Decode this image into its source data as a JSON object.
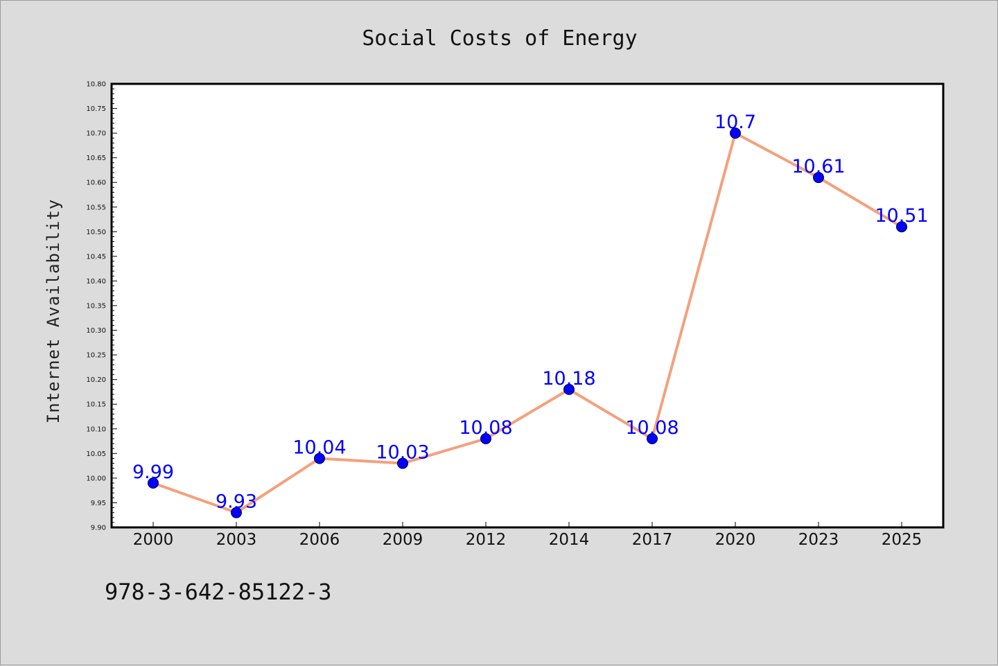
{
  "chart_data": {
    "type": "line",
    "title": "Social Costs of Energy",
    "xlabel": "",
    "ylabel": "Internet Availability",
    "categories": [
      "2000",
      "2003",
      "2006",
      "2009",
      "2012",
      "2014",
      "2017",
      "2020",
      "2023",
      "2025"
    ],
    "series": [
      {
        "values": [
          9.99,
          9.93,
          10.04,
          10.03,
          10.08,
          10.18,
          10.08,
          10.7,
          10.61,
          10.51
        ],
        "data_labels": [
          "9.99",
          "9.93",
          "10.04",
          "10.03",
          "10.08",
          "10.18",
          "10.08",
          "10.7",
          "10.61",
          "10.51"
        ],
        "line_color": "#f4a07c",
        "marker_color": "#0000ff"
      }
    ],
    "ylim": [
      9.9,
      10.8
    ],
    "yticks": [
      "9.90",
      "9.95",
      "10.00",
      "10.05",
      "10.10",
      "10.15",
      "10.20",
      "10.25",
      "10.30",
      "10.35",
      "10.40",
      "10.45",
      "10.50",
      "10.55",
      "10.60",
      "10.65",
      "10.70",
      "10.75",
      "10.80"
    ],
    "grid": false,
    "legend": "none"
  },
  "footer": {
    "isbn": "978-3-642-85122-3"
  },
  "colors": {
    "background": "#dcdcdc",
    "plot_background": "#ffffff",
    "line": "#f4a07c",
    "marker": "#0000ff",
    "data_label": "#0000ff"
  }
}
